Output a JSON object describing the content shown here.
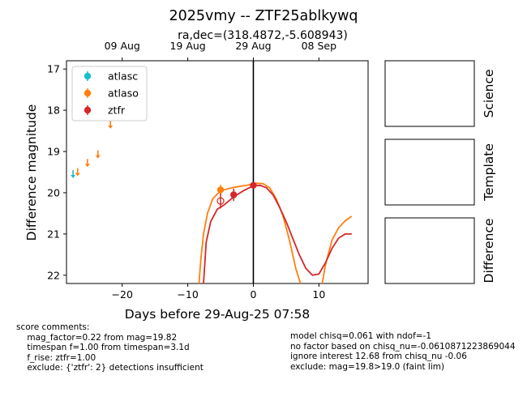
{
  "figure": {
    "title": "2025vmy -- ZTF25ablkywq",
    "subtitle": "ra,dec=(318.4872,-5.608943)"
  },
  "chart_data": {
    "type": "scatter",
    "xlabel": "Days before 29-Aug-25 07:58",
    "ylabel": "Difference magnitude",
    "xlim": [
      -28.5,
      17.5
    ],
    "ylim": [
      22.2,
      16.8
    ],
    "y_inverted": true,
    "grid": false,
    "legend_placement": "top-left",
    "x_ticks": [
      -20,
      -10,
      0,
      10
    ],
    "x_tick_labels": [
      "−20",
      "−10",
      "0",
      "10"
    ],
    "y_ticks": [
      17,
      18,
      19,
      20,
      21,
      22
    ],
    "y_tick_labels": [
      "17",
      "18",
      "19",
      "20",
      "21",
      "22"
    ],
    "top_ticks": [
      {
        "x": -20,
        "label": "09 Aug"
      },
      {
        "x": -10,
        "label": "19 Aug"
      },
      {
        "x": 0,
        "label": "29 Aug"
      },
      {
        "x": 10,
        "label": "08 Sep"
      }
    ],
    "vline_x": 0,
    "series": [
      {
        "name": "atlasc",
        "color": "#17becf",
        "detections": [],
        "upper_limits": [
          {
            "x": -27.5,
            "y": 19.55
          }
        ]
      },
      {
        "name": "atlaso",
        "color": "#ff7f0e",
        "detections": [
          {
            "x": -5.0,
            "y": 19.93,
            "err": 0.12
          }
        ],
        "upper_limits": [
          {
            "x": -26.8,
            "y": 19.5
          },
          {
            "x": -25.3,
            "y": 19.28
          },
          {
            "x": -23.7,
            "y": 19.07
          },
          {
            "x": -21.8,
            "y": 18.35
          }
        ]
      },
      {
        "name": "ztfr",
        "color": "#d62728",
        "detections": [
          {
            "x": -3.0,
            "y": 20.05,
            "err": 0.15
          },
          {
            "x": 0.0,
            "y": 19.82,
            "err": 0.06
          }
        ],
        "open_points": [
          {
            "x": -5.0,
            "y": 20.2,
            "err": 0.18
          }
        ],
        "upper_limits": []
      }
    ],
    "models": [
      {
        "series": "atlaso",
        "color": "#ff7f0e",
        "points": [
          [
            -8.3,
            22.2
          ],
          [
            -8.0,
            21.6
          ],
          [
            -7.6,
            21.0
          ],
          [
            -7.0,
            20.5
          ],
          [
            -6.2,
            20.15
          ],
          [
            -5.0,
            19.95
          ],
          [
            -3.0,
            19.87
          ],
          [
            -1.0,
            19.82
          ],
          [
            0.5,
            19.77
          ],
          [
            1.5,
            19.78
          ],
          [
            2.5,
            19.88
          ],
          [
            3.5,
            20.15
          ],
          [
            4.5,
            20.55
          ],
          [
            5.5,
            21.15
          ],
          [
            6.5,
            21.85
          ],
          [
            7.2,
            22.2
          ]
        ]
      },
      {
        "series": "atlaso",
        "color": "#ff7f0e",
        "points": [
          [
            10.5,
            22.2
          ],
          [
            11.0,
            21.75
          ],
          [
            12.0,
            21.15
          ],
          [
            13.0,
            20.85
          ],
          [
            14.0,
            20.68
          ],
          [
            15.0,
            20.57
          ]
        ]
      },
      {
        "series": "ztfr",
        "color": "#d62728",
        "points": [
          [
            -7.6,
            22.2
          ],
          [
            -7.2,
            21.2
          ],
          [
            -6.5,
            20.7
          ],
          [
            -5.5,
            20.4
          ],
          [
            -4.5,
            20.3
          ],
          [
            -3.0,
            20.1
          ],
          [
            -1.5,
            19.95
          ],
          [
            0.0,
            19.83
          ],
          [
            1.0,
            19.82
          ],
          [
            2.0,
            19.88
          ],
          [
            3.0,
            20.05
          ],
          [
            4.0,
            20.35
          ],
          [
            5.0,
            20.7
          ],
          [
            6.0,
            21.1
          ],
          [
            7.0,
            21.5
          ],
          [
            8.0,
            21.83
          ],
          [
            9.0,
            22.0
          ],
          [
            10.0,
            21.97
          ],
          [
            11.0,
            21.7
          ],
          [
            12.0,
            21.35
          ],
          [
            13.0,
            21.1
          ],
          [
            14.0,
            21.0
          ],
          [
            15.0,
            21.0
          ]
        ]
      }
    ]
  },
  "side_panels": [
    {
      "label": "Science"
    },
    {
      "label": "Template"
    },
    {
      "label": "Difference"
    }
  ],
  "comments": {
    "left": "score comments:\n    mag_factor=0.22 from mag=19.82\n    timespan f=1.00 from timespan=3.1d\n    f_rise: ztfr=1.00\n    exclude: {'ztfr': 2} detections insufficient",
    "right": "model chisq=0.061 with ndof=-1\nno factor based on chisq_nu=-0.0610871223869044\nignore interest 12.68 from chisq_nu -0.06\nexclude: mag=19.8>19.0 (faint lim)"
  }
}
